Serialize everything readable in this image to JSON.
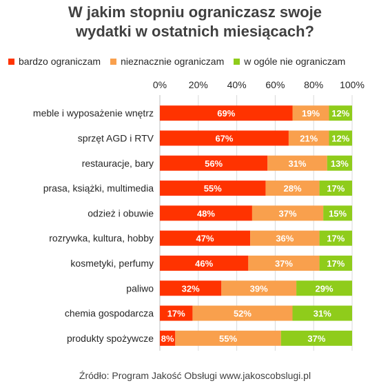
{
  "title_lines": [
    "W jakim stopniu ograniczasz swoje",
    "wydatki w ostatnich miesiącach?"
  ],
  "source": "Źródło: Program Jakość Obsługi www.jakoscobslugi.pl",
  "colors": {
    "bardzo": "#ff3300",
    "nieznacznie": "#f9a04d",
    "wogole": "#8fcc1b"
  },
  "chart_data": {
    "type": "bar",
    "orientation": "horizontal",
    "stacked": "100%",
    "title": "W jakim stopniu ograniczasz swoje wydatki w ostatnich miesiącach?",
    "categories": [
      "meble i wyposażenie wnętrz",
      "sprzęt AGD i RTV",
      "restauracje, bary",
      "prasa, książki, multimedia",
      "odzież i obuwie",
      "rozrywka, kultura, hobby",
      "kosmetyki, perfumy",
      "paliwo",
      "chemia gospodarcza",
      "produkty spożywcze"
    ],
    "series": [
      {
        "name": "bardzo ograniczam",
        "color": "#ff3300",
        "values": [
          69,
          67,
          56,
          55,
          48,
          47,
          46,
          32,
          17,
          8
        ]
      },
      {
        "name": "nieznacznie ograniczam",
        "color": "#f9a04d",
        "values": [
          19,
          21,
          31,
          28,
          37,
          36,
          37,
          39,
          52,
          55
        ]
      },
      {
        "name": "w ogóle nie ograniczam",
        "color": "#8fcc1b",
        "values": [
          12,
          12,
          13,
          17,
          15,
          17,
          17,
          29,
          31,
          37
        ]
      }
    ],
    "x_ticks": [
      "0%",
      "20%",
      "40%",
      "60%",
      "80%",
      "100%"
    ],
    "xlim": [
      0,
      100
    ],
    "grid": true,
    "legend_position": "top",
    "axis_position": "top"
  }
}
